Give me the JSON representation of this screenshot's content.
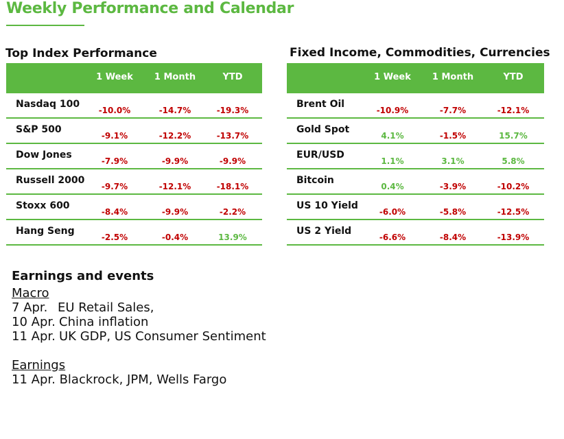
{
  "title": "Weekly Performance and Calendar",
  "left_table": {
    "heading": "Top Index Performance",
    "columns": [
      "1 Week",
      "1 Month",
      "YTD"
    ],
    "rows": [
      {
        "name": "Nasdaq 100",
        "w": "-10.0%",
        "m": "-14.7%",
        "ytd": "-19.3%"
      },
      {
        "name": "S&P 500",
        "w": "-9.1%",
        "m": "-12.2%",
        "ytd": "-13.7%"
      },
      {
        "name": "Dow Jones",
        "w": "-7.9%",
        "m": "-9.9%",
        "ytd": "-9.9%"
      },
      {
        "name": "Russell 2000",
        "w": "-9.7%",
        "m": "-12.1%",
        "ytd": "-18.1%"
      },
      {
        "name": "Stoxx 600",
        "w": "-8.4%",
        "m": "-9.9%",
        "ytd": "-2.2%"
      },
      {
        "name": "Hang Seng",
        "w": "-2.5%",
        "m": "-0.4%",
        "ytd": "13.9%"
      }
    ]
  },
  "right_table": {
    "heading": "Fixed Income, Commodities, Currencies",
    "columns": [
      "1 Week",
      "1 Month",
      "YTD"
    ],
    "rows": [
      {
        "name": "Brent Oil",
        "w": "-10.9%",
        "m": "-7.7%",
        "ytd": "-12.1%"
      },
      {
        "name": "Gold Spot",
        "w": "4.1%",
        "m": "-1.5%",
        "ytd": "15.7%"
      },
      {
        "name": "EUR/USD",
        "w": "1.1%",
        "m": "3.1%",
        "ytd": "5.8%"
      },
      {
        "name": "Bitcoin",
        "w": "0.4%",
        "m": "-3.9%",
        "ytd": "-10.2%"
      },
      {
        "name": "US 10 Yield",
        "w": "-6.0%",
        "m": "-5.8%",
        "ytd": "-12.5%"
      },
      {
        "name": "US 2 Yield",
        "w": "-6.6%",
        "m": "-8.4%",
        "ytd": "-13.9%"
      }
    ]
  },
  "colors": {
    "brand_green": "#5cb841",
    "negative_red": "#c00000",
    "positive_green": "#5cb841"
  },
  "events": {
    "heading": "Earnings and events",
    "macro_label": "Macro",
    "macro": [
      {
        "date": "7 Apr.",
        "text": "EU Retail Sales,"
      },
      {
        "date": "10 Apr.",
        "text": "China inflation"
      },
      {
        "date": "11 Apr.",
        "text": "UK GDP, US Consumer Sentiment"
      }
    ],
    "earnings_label": "Earnings",
    "earnings": [
      {
        "date": "11 Apr.",
        "text": "Blackrock, JPM, Wells Fargo"
      }
    ]
  }
}
